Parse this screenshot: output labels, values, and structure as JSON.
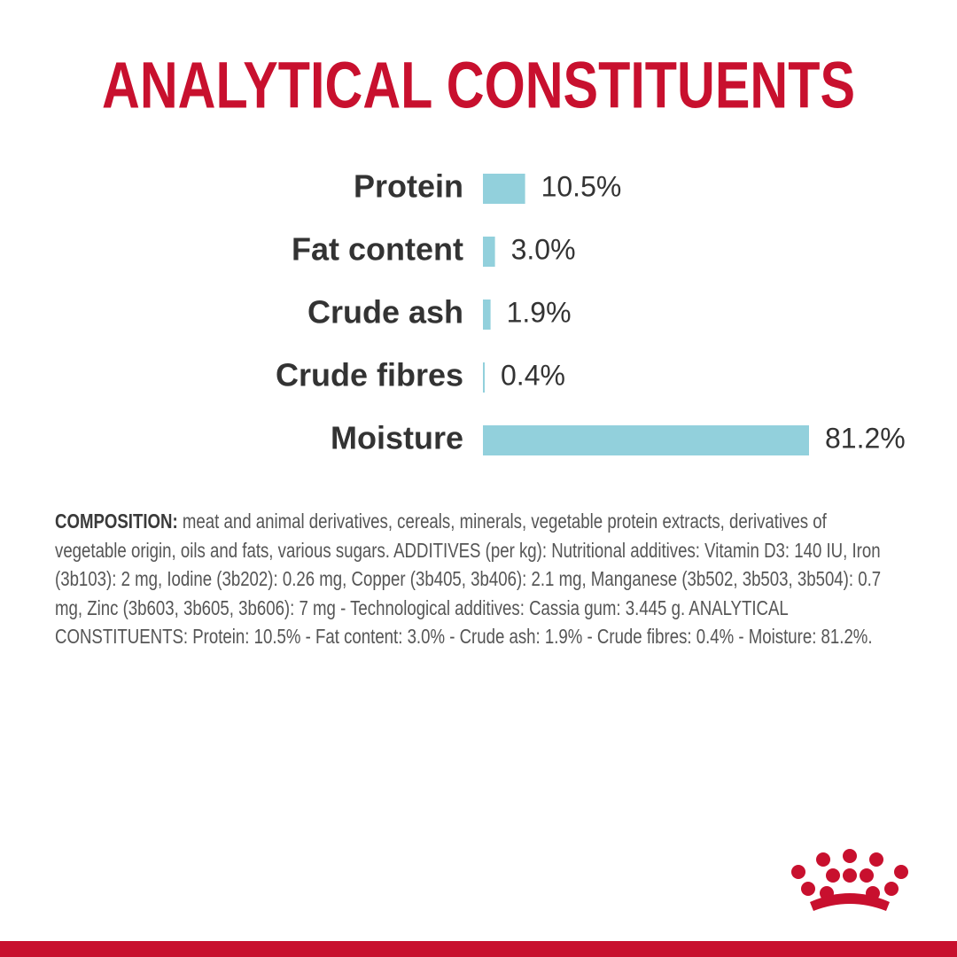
{
  "chart_data": {
    "type": "hbar",
    "title": "ANALYTICAL CONSTITUENTS",
    "categories": [
      "Protein",
      "Fat content",
      "Crude ash",
      "Crude fibres",
      "Moisture"
    ],
    "values": [
      10.5,
      3.0,
      1.9,
      0.4,
      81.2
    ],
    "value_labels": [
      "10.5%",
      "3.0%",
      "1.9%",
      "0.4%",
      "81.2%"
    ],
    "color": "#92d0dc"
  },
  "composition": {
    "label": "COMPOSITION:",
    "text": "meat and animal derivatives, cereals, minerals, vegetable protein extracts, derivatives of vegetable origin, oils and fats, various sugars. ADDITIVES (per kg): Nutritional additives: Vitamin D3: 140 IU, Iron (3b103): 2 mg, Iodine (3b202): 0.26 mg, Copper (3b405, 3b406): 2.1 mg, Manganese (3b502, 3b503, 3b504): 0.7 mg, Zinc (3b603, 3b605, 3b606): 7 mg - Technological additives: Cassia gum: 3.445 g. ANALYTICAL CONSTITUENTS: Protein: 10.5% - Fat content: 3.0% - Crude ash: 1.9% - Crude fibres: 0.4% - Moisture: 81.2%."
  }
}
